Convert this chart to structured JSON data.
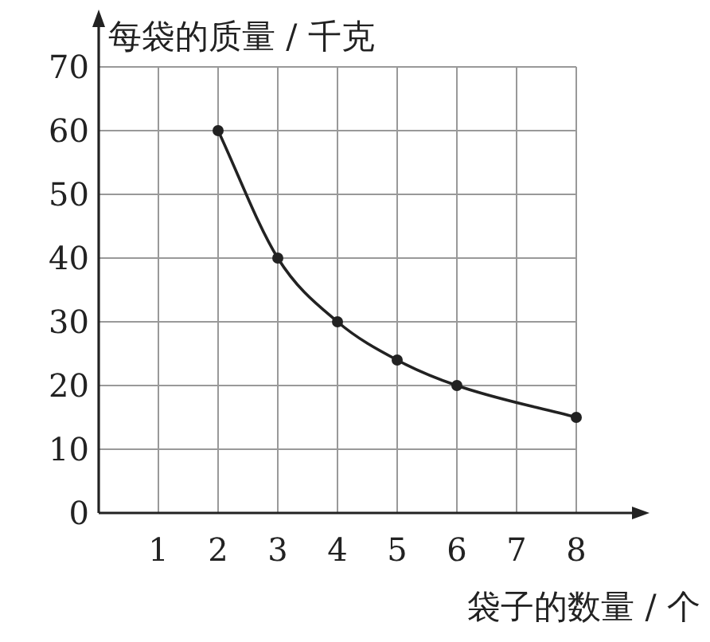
{
  "chart_data": {
    "type": "line",
    "xlabel": "袋子的数量 / 个",
    "ylabel": "每袋的质量 / 千克",
    "x": [
      2,
      3,
      4,
      5,
      6,
      8
    ],
    "series": [
      {
        "color": "#222222",
        "values": [
          60,
          40,
          30,
          24,
          20,
          15
        ]
      }
    ],
    "xlim": [
      0,
      8
    ],
    "ylim": [
      0,
      70
    ],
    "xticks": [
      1,
      2,
      3,
      4,
      5,
      6,
      7,
      8
    ],
    "yticks": [
      0,
      10,
      20,
      30,
      40,
      50,
      60,
      70
    ],
    "grid": true,
    "marker": "circle",
    "line_style": "solid"
  }
}
